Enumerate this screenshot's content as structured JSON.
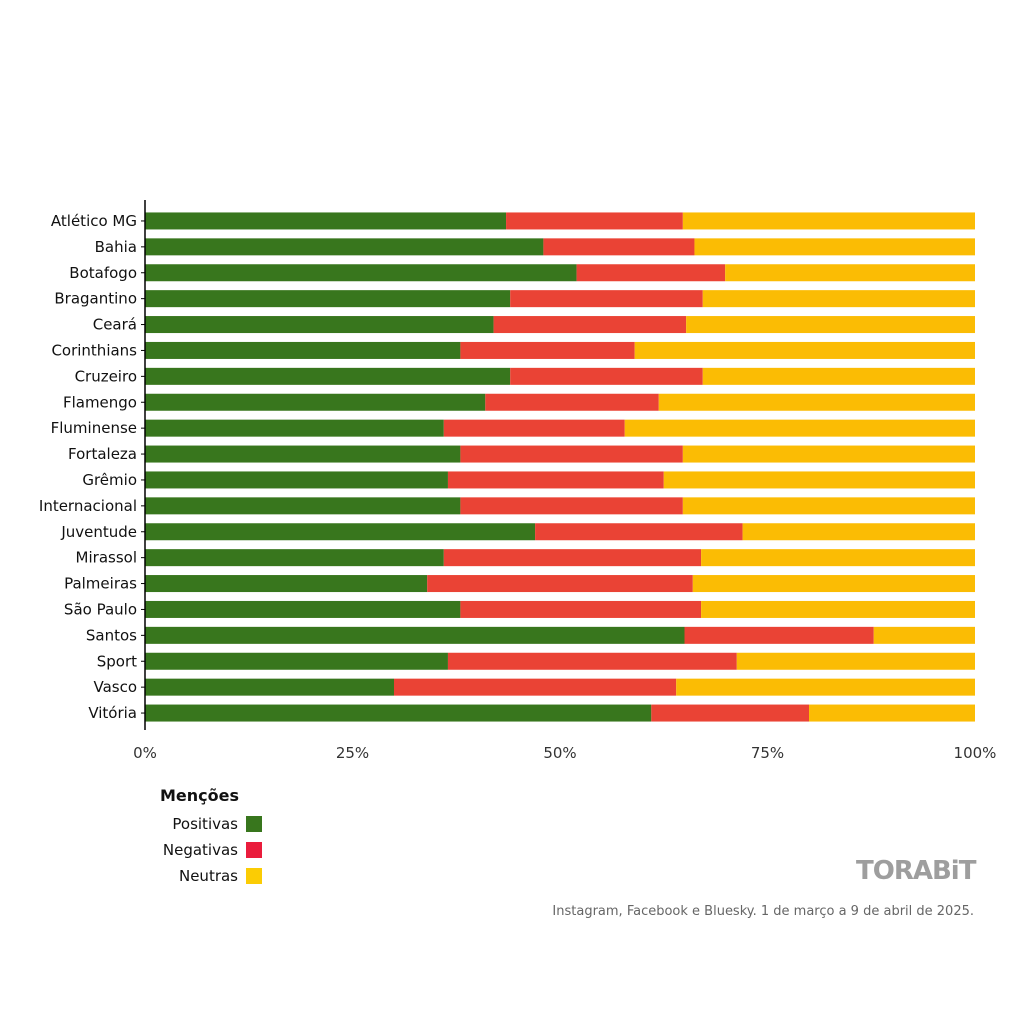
{
  "chart_data": {
    "type": "bar",
    "orientation": "horizontal",
    "stacked": true,
    "categories": [
      "Atlético MG",
      "Bahia",
      "Botafogo",
      "Bragantino",
      "Ceará",
      "Corinthians",
      "Cruzeiro",
      "Flamengo",
      "Fluminense",
      "Fortaleza",
      "Grêmio",
      "Internacional",
      "Juventude",
      "Mirassol",
      "Palmeiras",
      "São Paulo",
      "Santos",
      "Sport",
      "Vasco",
      "Vitória"
    ],
    "series": [
      {
        "name": "Positivas",
        "color": "#38761d",
        "values": [
          43.5,
          48,
          52,
          44,
          42,
          38,
          44,
          41,
          36,
          38,
          36.5,
          38,
          47,
          36,
          34,
          38,
          65,
          36.5,
          30,
          61
        ]
      },
      {
        "name": "Negativas",
        "color": "#ea4335",
        "values": [
          21.3,
          18.2,
          17.9,
          23.2,
          23.2,
          21,
          23.2,
          20.9,
          21.8,
          26.8,
          26,
          26.8,
          25,
          31,
          32,
          29,
          22.8,
          34.8,
          34,
          19
        ]
      },
      {
        "name": "Neutras",
        "color": "#fbbc04",
        "values": [
          35.2,
          33.8,
          30.1,
          32.8,
          34.8,
          41,
          32.8,
          38.1,
          42.2,
          35.2,
          37.5,
          35.2,
          28,
          33,
          34,
          33,
          12.2,
          28.7,
          36,
          20
        ]
      }
    ],
    "xlim": [
      0,
      100
    ],
    "xticks": [
      "0%",
      "25%",
      "50%",
      "75%",
      "100%"
    ],
    "legend": {
      "title": "Menções",
      "position": "bottom-left"
    },
    "grid": false
  },
  "colors": {
    "positivas": "#38761d",
    "negativas": "#ea4335",
    "neutras": "#fbbc04"
  },
  "legend": {
    "title": "Menções",
    "items": [
      {
        "label": "Positivas",
        "color": "#38761d"
      },
      {
        "label": "Negativas",
        "color": "#ea4335"
      },
      {
        "label": "Neutras",
        "color": "#fbbc04"
      }
    ]
  },
  "brand": "TORABiT",
  "source": "Instagram, Facebook e Bluesky.  1 de março a 9 de abril de 2025."
}
